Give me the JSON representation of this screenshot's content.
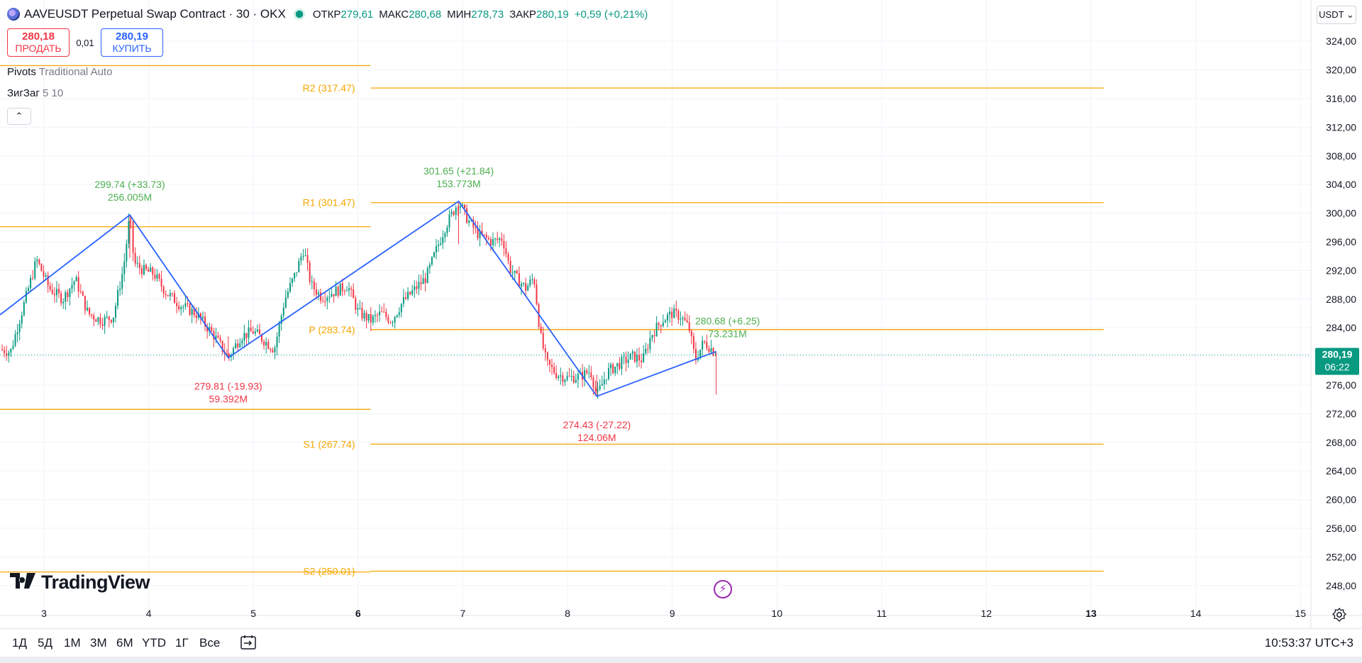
{
  "header": {
    "symbol": "AAVEUSDT Perpetual Swap Contract · 30 · OKX",
    "open_label": "ОТКР",
    "open": "279,61",
    "high_label": "МАКС",
    "high": "280,68",
    "low_label": "МИН",
    "low": "278,73",
    "close_label": "ЗАКР",
    "close": "280,19",
    "change": "+0,59 (+0,21%)"
  },
  "trade": {
    "sell_price": "280,18",
    "sell_label": "ПРОДАТЬ",
    "spread": "0,01",
    "buy_price": "280,19",
    "buy_label": "КУПИТЬ"
  },
  "indicators": [
    {
      "name": "Pivots",
      "params": "Traditional Auto"
    },
    {
      "name": "ЗигЗаг",
      "params": "5 10"
    }
  ],
  "currency": "USDT",
  "logo_text": "TradingView",
  "bottom": {
    "timeframes": [
      "1Д",
      "5Д",
      "1M",
      "3M",
      "6M",
      "YTD",
      "1Г",
      "Все"
    ],
    "clock": "10:53:37 UTC+3"
  },
  "colors": {
    "up": "#089981",
    "down": "#f23645",
    "pivot": "#f7a600",
    "zigzag": "#2962ff",
    "label_up": "#4caf50",
    "label_down": "#f23645"
  },
  "chart_data": {
    "type": "candlestick",
    "x_axis": {
      "ticks": [
        "3",
        "4",
        "5",
        "6",
        "7",
        "8",
        "9",
        "10",
        "11",
        "12",
        "13",
        "14",
        "15"
      ],
      "bold_ticks": [
        "6",
        "13"
      ],
      "range": [
        2.58,
        15.1
      ]
    },
    "y_axis": {
      "ticks": [
        "324,00",
        "320,00",
        "316,00",
        "312,00",
        "308,00",
        "304,00",
        "300,00",
        "296,00",
        "292,00",
        "288,00",
        "284,00",
        "280,00",
        "276,00",
        "272,00",
        "268,00",
        "264,00",
        "260,00",
        "256,00",
        "252,00",
        "248,00"
      ],
      "range": [
        245.8,
        325.8
      ]
    },
    "last_price": {
      "value": 280.19,
      "label": "280,19",
      "countdown": "06:22"
    },
    "pivots": [
      {
        "name": "R2",
        "label": "R2 (317.47)",
        "value": 317.47,
        "x_from": 6.12,
        "x_to": 13.12
      },
      {
        "name": "R1",
        "label": "R1 (301.47)",
        "value": 301.47,
        "x_from": 6.12,
        "x_to": 13.12
      },
      {
        "name": "P",
        "label": "P (283.74)",
        "value": 283.74,
        "x_from": 6.12,
        "x_to": 13.12
      },
      {
        "name": "S1",
        "label": "S1 (267.74)",
        "value": 267.74,
        "x_from": 6.12,
        "x_to": 13.12
      },
      {
        "name": "S2",
        "label": "S2 (250.01)",
        "value": 250.01,
        "x_from": 6.12,
        "x_to": 13.12
      },
      {
        "name": "prev-R2",
        "label": "",
        "value": 320.6,
        "x_from": 2.58,
        "x_to": 6.12
      },
      {
        "name": "prev-R1",
        "label": "",
        "value": 298.1,
        "x_from": 2.58,
        "x_to": 6.12
      },
      {
        "name": "prev-S1",
        "label": "",
        "value": 272.6,
        "x_from": 2.58,
        "x_to": 6.12
      },
      {
        "name": "prev-S2",
        "label": "",
        "value": 249.9,
        "x_from": 2.58,
        "x_to": 6.12
      }
    ],
    "zigzag": [
      {
        "x": 2.58,
        "y": 285.8
      },
      {
        "x": 3.82,
        "y": 299.74,
        "label": "299.74 (+33.73)",
        "vol": "256.005M",
        "dir": "up"
      },
      {
        "x": 4.76,
        "y": 279.81,
        "label": "279.81 (-19.93)",
        "vol": "59.392M",
        "dir": "down"
      },
      {
        "x": 6.96,
        "y": 301.65,
        "label": "301.65 (+21.84)",
        "vol": "153.773M",
        "dir": "up"
      },
      {
        "x": 8.28,
        "y": 274.43,
        "label": "274.43 (-27.22)",
        "vol": "124.06M",
        "dir": "down"
      },
      {
        "x": 9.42,
        "y": 280.68,
        "label": "280.68 (+6.25)",
        "vol": "73.231M",
        "dir": "up"
      }
    ],
    "path": [
      [
        2.58,
        281.0
      ],
      [
        2.68,
        280.6
      ],
      [
        2.76,
        284.8
      ],
      [
        2.93,
        293.5
      ],
      [
        3.05,
        289.5
      ],
      [
        3.18,
        288.0
      ],
      [
        3.3,
        290.8
      ],
      [
        3.42,
        286.0
      ],
      [
        3.55,
        285.0
      ],
      [
        3.66,
        285.5
      ],
      [
        3.76,
        292.4
      ],
      [
        3.82,
        299.74
      ],
      [
        3.86,
        293.0
      ],
      [
        3.95,
        292.0
      ],
      [
        4.05,
        291.5
      ],
      [
        4.16,
        289.0
      ],
      [
        4.3,
        287.2
      ],
      [
        4.45,
        286.0
      ],
      [
        4.62,
        283.0
      ],
      [
        4.76,
        279.81
      ],
      [
        4.88,
        282.8
      ],
      [
        5.0,
        283.5
      ],
      [
        5.12,
        282.0
      ],
      [
        5.2,
        281.0
      ],
      [
        5.3,
        288.0
      ],
      [
        5.4,
        291.5
      ],
      [
        5.48,
        295.0
      ],
      [
        5.55,
        290.0
      ],
      [
        5.65,
        288.3
      ],
      [
        5.8,
        289.2
      ],
      [
        5.9,
        289.9
      ],
      [
        6.0,
        286.2
      ],
      [
        6.12,
        285.0
      ],
      [
        6.22,
        286.0
      ],
      [
        6.32,
        285.0
      ],
      [
        6.42,
        287.5
      ],
      [
        6.55,
        289.5
      ],
      [
        6.65,
        291.0
      ],
      [
        6.75,
        295.0
      ],
      [
        6.83,
        298.0
      ],
      [
        6.9,
        300.0
      ],
      [
        6.96,
        301.65
      ],
      [
        7.05,
        299.0
      ],
      [
        7.15,
        297.0
      ],
      [
        7.28,
        296.0
      ],
      [
        7.38,
        296.5
      ],
      [
        7.45,
        292.2
      ],
      [
        7.52,
        290.8
      ],
      [
        7.6,
        289.5
      ],
      [
        7.68,
        291.0
      ],
      [
        7.74,
        283.0
      ],
      [
        7.8,
        279.0
      ],
      [
        7.9,
        277.5
      ],
      [
        8.0,
        277.0
      ],
      [
        8.12,
        277.2
      ],
      [
        8.22,
        278.0
      ],
      [
        8.28,
        274.43
      ],
      [
        8.38,
        277.8
      ],
      [
        8.5,
        279.0
      ],
      [
        8.62,
        280.0
      ],
      [
        8.72,
        279.5
      ],
      [
        8.8,
        283.0
      ],
      [
        8.9,
        285.0
      ],
      [
        9.0,
        286.0
      ],
      [
        9.08,
        285.6
      ],
      [
        9.16,
        284.0
      ],
      [
        9.22,
        279.5
      ],
      [
        9.3,
        282.0
      ],
      [
        9.38,
        281.0
      ],
      [
        9.42,
        280.19
      ]
    ]
  }
}
